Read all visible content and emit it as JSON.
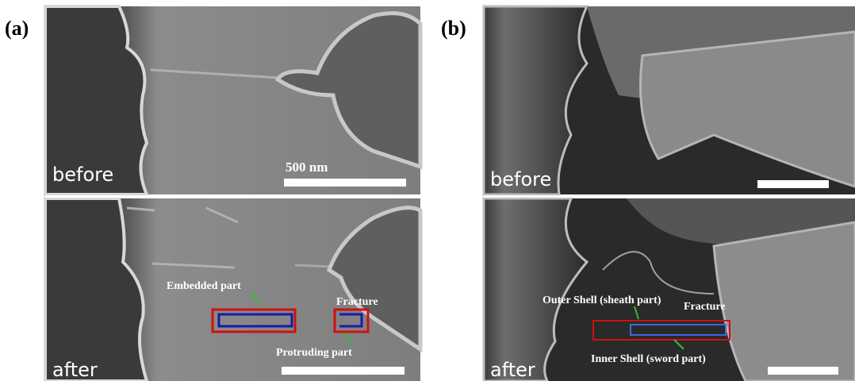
{
  "panels": [
    {
      "label": "(a)",
      "top": {
        "caption": "before",
        "scale_bar": "500 nm"
      },
      "bottom": {
        "caption": "after",
        "annotations": [
          "Embedded part",
          "Fracture",
          "Protruding part"
        ]
      }
    },
    {
      "label": "(b)",
      "top": {
        "caption": "before"
      },
      "bottom": {
        "caption": "after",
        "annotations": [
          "Outer Shell (sheath part)",
          "Fracture",
          "Inner Shell (sword part)"
        ]
      }
    }
  ]
}
